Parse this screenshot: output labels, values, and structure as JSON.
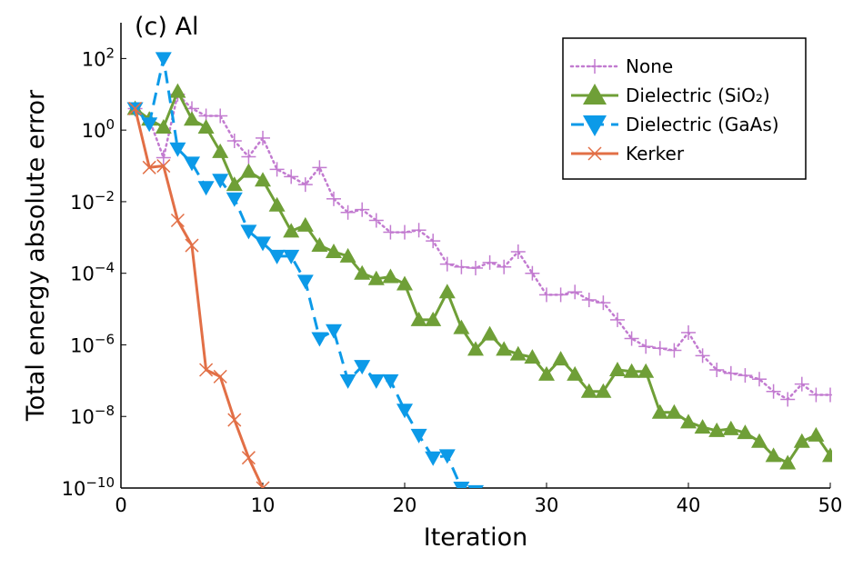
{
  "chart_data": {
    "type": "line",
    "title": "(c) Al",
    "xlabel": "Iteration",
    "ylabel": "Total energy absolute error",
    "xlim": [
      0,
      50
    ],
    "ylim": [
      1e-10,
      1000
    ],
    "yscale": "log",
    "grid": false,
    "legend_position": "top-right",
    "x_ticks": [
      0,
      10,
      20,
      30,
      40,
      50
    ],
    "y_ticks": [
      {
        "value": 1e-10,
        "base": "10",
        "exp": "−10"
      },
      {
        "value": 1e-08,
        "base": "10",
        "exp": "−8"
      },
      {
        "value": 1e-06,
        "base": "10",
        "exp": "−6"
      },
      {
        "value": 0.0001,
        "base": "10",
        "exp": "−4"
      },
      {
        "value": 0.01,
        "base": "10",
        "exp": "−2"
      },
      {
        "value": 1,
        "base": "10",
        "exp": "0"
      },
      {
        "value": 100,
        "base": "10",
        "exp": "2"
      }
    ],
    "series": [
      {
        "name": "None",
        "color": "#c27bd0",
        "line": "dotted",
        "marker": "plus",
        "x": [
          1,
          2,
          3,
          4,
          5,
          6,
          7,
          8,
          9,
          10,
          11,
          12,
          13,
          14,
          15,
          16,
          17,
          18,
          19,
          20,
          21,
          22,
          23,
          24,
          25,
          26,
          27,
          28,
          29,
          30,
          31,
          32,
          33,
          34,
          35,
          36,
          37,
          38,
          39,
          40,
          41,
          42,
          43,
          44,
          45,
          46,
          47,
          48,
          49,
          50
        ],
        "y": [
          4.0,
          2.0,
          0.17,
          10.0,
          4.0,
          2.5,
          2.5,
          0.5,
          0.18,
          0.6,
          0.08,
          0.05,
          0.03,
          0.09,
          0.012,
          0.005,
          0.006,
          0.003,
          0.0014,
          0.0014,
          0.0016,
          0.0008,
          0.00018,
          0.00015,
          0.00014,
          0.0002,
          0.00015,
          0.0004,
          0.0001,
          2.5e-05,
          2.5e-05,
          3e-05,
          1.8e-05,
          1.5e-05,
          5e-06,
          1.5e-06,
          9e-07,
          8e-07,
          7e-07,
          2.2e-06,
          5e-07,
          2e-07,
          1.6e-07,
          1.4e-07,
          1.1e-07,
          5e-08,
          3e-08,
          8e-08,
          4e-08,
          4e-08
        ]
      },
      {
        "name": "Dielectric (SiO₂)",
        "color": "#6f9f37",
        "line": "solid",
        "marker": "triangle-up",
        "x": [
          1,
          2,
          3,
          4,
          5,
          6,
          7,
          8,
          9,
          10,
          11,
          12,
          13,
          14,
          15,
          16,
          17,
          18,
          19,
          20,
          21,
          22,
          23,
          24,
          25,
          26,
          27,
          28,
          29,
          30,
          31,
          32,
          33,
          34,
          35,
          36,
          37,
          38,
          39,
          40,
          41,
          42,
          43,
          44,
          45,
          46,
          47,
          48,
          49,
          50
        ],
        "y": [
          4.0,
          2.0,
          1.2,
          12.0,
          2.0,
          1.2,
          0.25,
          0.03,
          0.07,
          0.04,
          0.008,
          0.0015,
          0.0022,
          0.0006,
          0.0004,
          0.0003,
          0.0001,
          7e-05,
          8e-05,
          5e-05,
          5e-06,
          5e-06,
          3e-05,
          3e-06,
          7.5e-07,
          2e-06,
          7.5e-07,
          5.5e-07,
          4.5e-07,
          1.5e-07,
          4e-07,
          1.5e-07,
          5e-08,
          5e-08,
          2e-07,
          1.8e-07,
          1.8e-07,
          1.3e-08,
          1.3e-08,
          7e-09,
          5e-09,
          4e-09,
          4.5e-09,
          3.5e-09,
          2e-09,
          8e-10,
          5e-10,
          2e-09,
          3e-09,
          8e-10
        ]
      },
      {
        "name": "Dielectric (GaAs)",
        "color": "#0c9ae8",
        "line": "dashed",
        "marker": "triangle-down",
        "x": [
          1,
          2,
          3,
          4,
          5,
          6,
          7,
          8,
          9,
          10,
          11,
          12,
          13,
          14,
          15,
          16,
          17,
          18,
          19,
          20,
          21,
          22,
          23,
          24,
          25
        ],
        "y": [
          4.0,
          1.5,
          100.0,
          0.3,
          0.12,
          0.025,
          0.04,
          0.012,
          0.0015,
          0.0007,
          0.0003,
          0.0003,
          6e-05,
          1.5e-06,
          2.5e-06,
          1e-07,
          2.5e-07,
          1e-07,
          1e-07,
          1.5e-08,
          3e-09,
          7e-10,
          8e-10,
          1e-10,
          8e-11
        ]
      },
      {
        "name": "Kerker",
        "color": "#e26f46",
        "line": "solid",
        "marker": "cross",
        "x": [
          1,
          2,
          3,
          4,
          5,
          6,
          7,
          8,
          9,
          10
        ],
        "y": [
          4.0,
          0.09,
          0.1,
          0.003,
          0.0006,
          2e-07,
          1.3e-07,
          8e-09,
          7e-10,
          1e-10
        ]
      }
    ]
  }
}
